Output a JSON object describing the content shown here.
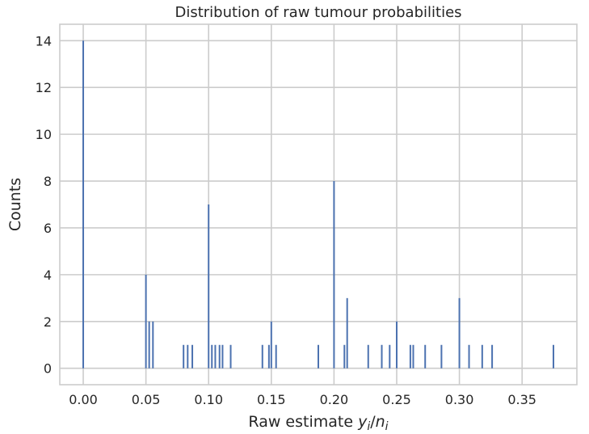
{
  "chart_data": {
    "type": "bar",
    "title": "Distribution of raw tumour probabilities",
    "xlabel_prefix": "Raw estimate ",
    "xlabel_math": [
      "y",
      "i",
      "/",
      "n",
      "i"
    ],
    "ylabel": "Counts",
    "xlim": [
      -0.0187,
      0.3937
    ],
    "ylim": [
      -0.7,
      14.7
    ],
    "xticks": [
      0.0,
      0.05,
      0.1,
      0.15,
      0.2,
      0.25,
      0.3,
      0.35
    ],
    "xtick_labels": [
      "0.00",
      "0.05",
      "0.10",
      "0.15",
      "0.20",
      "0.25",
      "0.30",
      "0.35"
    ],
    "yticks": [
      0,
      2,
      4,
      6,
      8,
      10,
      12,
      14
    ],
    "ytick_labels": [
      "0",
      "2",
      "4",
      "6",
      "8",
      "10",
      "12",
      "14"
    ],
    "grid": true,
    "bar_color": "#4c72b0",
    "bars": [
      {
        "x": 0.0,
        "count": 14
      },
      {
        "x": 0.05,
        "count": 4
      },
      {
        "x": 0.0526,
        "count": 2
      },
      {
        "x": 0.0556,
        "count": 2
      },
      {
        "x": 0.08,
        "count": 1
      },
      {
        "x": 0.0833,
        "count": 1
      },
      {
        "x": 0.087,
        "count": 1
      },
      {
        "x": 0.1,
        "count": 7
      },
      {
        "x": 0.1026,
        "count": 1
      },
      {
        "x": 0.1053,
        "count": 1
      },
      {
        "x": 0.1087,
        "count": 1
      },
      {
        "x": 0.1111,
        "count": 1
      },
      {
        "x": 0.1176,
        "count": 1
      },
      {
        "x": 0.1429,
        "count": 1
      },
      {
        "x": 0.1481,
        "count": 1
      },
      {
        "x": 0.15,
        "count": 2
      },
      {
        "x": 0.1538,
        "count": 1
      },
      {
        "x": 0.1875,
        "count": 1
      },
      {
        "x": 0.2,
        "count": 8
      },
      {
        "x": 0.2083,
        "count": 1
      },
      {
        "x": 0.2105,
        "count": 3
      },
      {
        "x": 0.2273,
        "count": 1
      },
      {
        "x": 0.2381,
        "count": 1
      },
      {
        "x": 0.2444,
        "count": 1
      },
      {
        "x": 0.25,
        "count": 2
      },
      {
        "x": 0.2609,
        "count": 1
      },
      {
        "x": 0.2632,
        "count": 1
      },
      {
        "x": 0.2727,
        "count": 1
      },
      {
        "x": 0.2857,
        "count": 1
      },
      {
        "x": 0.3,
        "count": 3
      },
      {
        "x": 0.3077,
        "count": 1
      },
      {
        "x": 0.3182,
        "count": 1
      },
      {
        "x": 0.3261,
        "count": 1
      },
      {
        "x": 0.375,
        "count": 1
      }
    ]
  }
}
